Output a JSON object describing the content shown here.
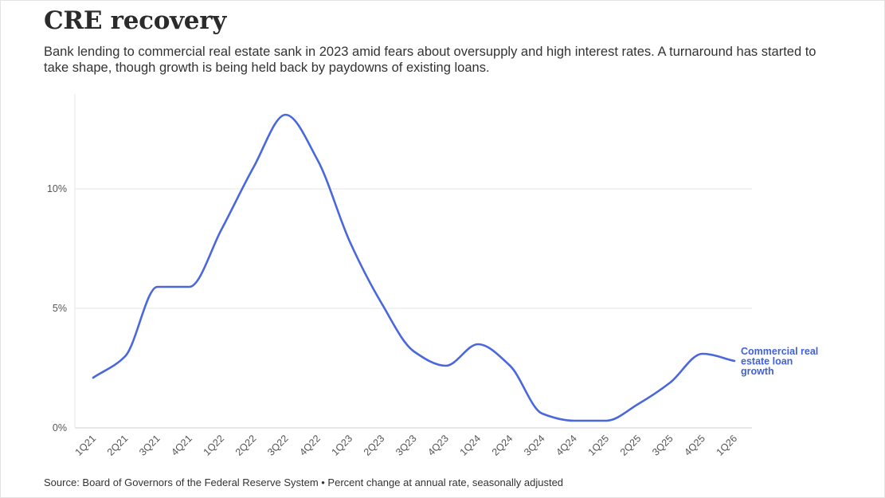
{
  "title": "CRE recovery",
  "subtitle": "Bank lending to commercial real estate sank in 2023 amid fears about oversupply and high interest rates. A turnaround has started to take shape, though growth is being held back by paydowns of existing loans.",
  "source": "Source: Board of Governors of the Federal Reserve System • Percent change at annual rate, seasonally adjusted",
  "colors": {
    "line": "#4a67de",
    "label": "#4161d8",
    "grid": "#e6e6e6",
    "axis": "#d0d0d0"
  },
  "chart_data": {
    "type": "line",
    "title": "",
    "xlabel": "",
    "ylabel": "",
    "categories": [
      "1Q21",
      "2Q21",
      "3Q21",
      "4Q21",
      "1Q22",
      "2Q22",
      "3Q22",
      "4Q22",
      "1Q23",
      "2Q23",
      "3Q23",
      "4Q23",
      "1Q24",
      "2Q24",
      "3Q24",
      "4Q24",
      "1Q25",
      "2Q25",
      "3Q25",
      "4Q25",
      "1Q26"
    ],
    "series": [
      {
        "name": "Commercial real estate loan growth",
        "name_lines": [
          "Commercial real",
          "estate loan",
          "growth"
        ],
        "values": [
          2.1,
          3.0,
          5.9,
          5.9,
          8.3,
          10.9,
          13.1,
          11.2,
          7.8,
          5.2,
          3.2,
          2.6,
          3.5,
          2.6,
          0.6,
          0.3,
          0.3,
          1.0,
          1.9,
          3.1,
          2.8
        ]
      }
    ],
    "ylim": [
      0,
      14
    ],
    "y_ticks": [
      0,
      5,
      10
    ],
    "y_tick_labels": [
      "0%",
      "5%",
      "10%"
    ],
    "grid": true,
    "legend": "end-of-line label"
  }
}
